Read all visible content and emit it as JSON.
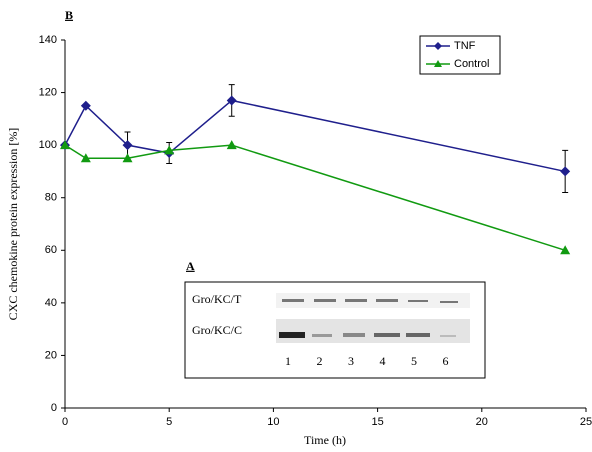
{
  "chart_data": {
    "type": "line",
    "panel_label": "B",
    "x_label": "Time (h)",
    "y_label": "CXC chemokine protein expression [%]",
    "x": [
      0,
      1,
      3,
      5,
      8,
      24
    ],
    "series": [
      {
        "name": "TNF",
        "color": "#1f1f8c",
        "marker": "diamond",
        "values": [
          100,
          115,
          100,
          97,
          117,
          90
        ],
        "errors": [
          null,
          null,
          5,
          4,
          6,
          8
        ]
      },
      {
        "name": "Control",
        "color": "#119a11",
        "marker": "triangle",
        "values": [
          100,
          95,
          95,
          98,
          100,
          60
        ]
      }
    ],
    "xlim": [
      0,
      25
    ],
    "xticks": [
      0,
      5,
      10,
      15,
      20,
      25
    ],
    "ylim": [
      0,
      140
    ],
    "yticks": [
      0,
      20,
      40,
      60,
      80,
      100,
      120,
      140
    ],
    "legend": "upper right"
  },
  "inset": {
    "label": "A",
    "rows": [
      "Gro/KC/T",
      "Gro/KC/C"
    ],
    "lanes": [
      "1",
      "2",
      "3",
      "4",
      "5",
      "6"
    ]
  }
}
